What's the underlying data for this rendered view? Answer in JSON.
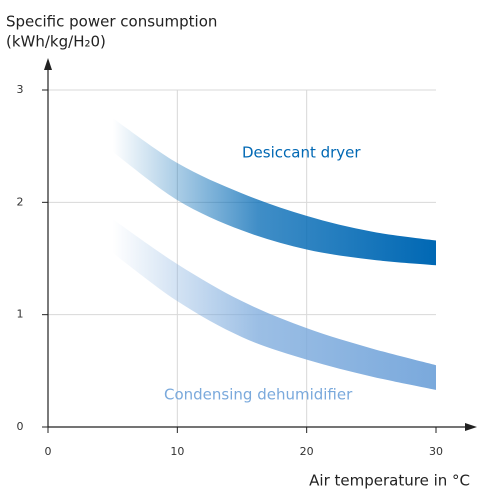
{
  "chart_data": {
    "type": "band",
    "y_axis_label": "Specific power consumption",
    "y_axis_unit": "(kWh/kg/H₂0)",
    "x_axis_label": "Air temperature in °C",
    "x": [
      5,
      10,
      15,
      20,
      25,
      30
    ],
    "series": [
      {
        "name": "Desiccant dryer",
        "color": "#0068b4",
        "upper": [
          2.75,
          2.35,
          2.08,
          1.88,
          1.74,
          1.66
        ],
        "lower": [
          2.45,
          2.02,
          1.75,
          1.58,
          1.49,
          1.44
        ]
      },
      {
        "name": "Condensing dehumidifier",
        "color": "#7aa9dc",
        "upper": [
          1.85,
          1.45,
          1.12,
          0.88,
          0.7,
          0.55
        ],
        "lower": [
          1.55,
          1.12,
          0.8,
          0.6,
          0.45,
          0.33
        ]
      }
    ],
    "xlim": [
      0,
      30
    ],
    "xticks": [
      0,
      10,
      20,
      30
    ],
    "ylim": [
      0,
      3
    ],
    "yticks": [
      0,
      1,
      2,
      3
    ],
    "grid": true
  }
}
